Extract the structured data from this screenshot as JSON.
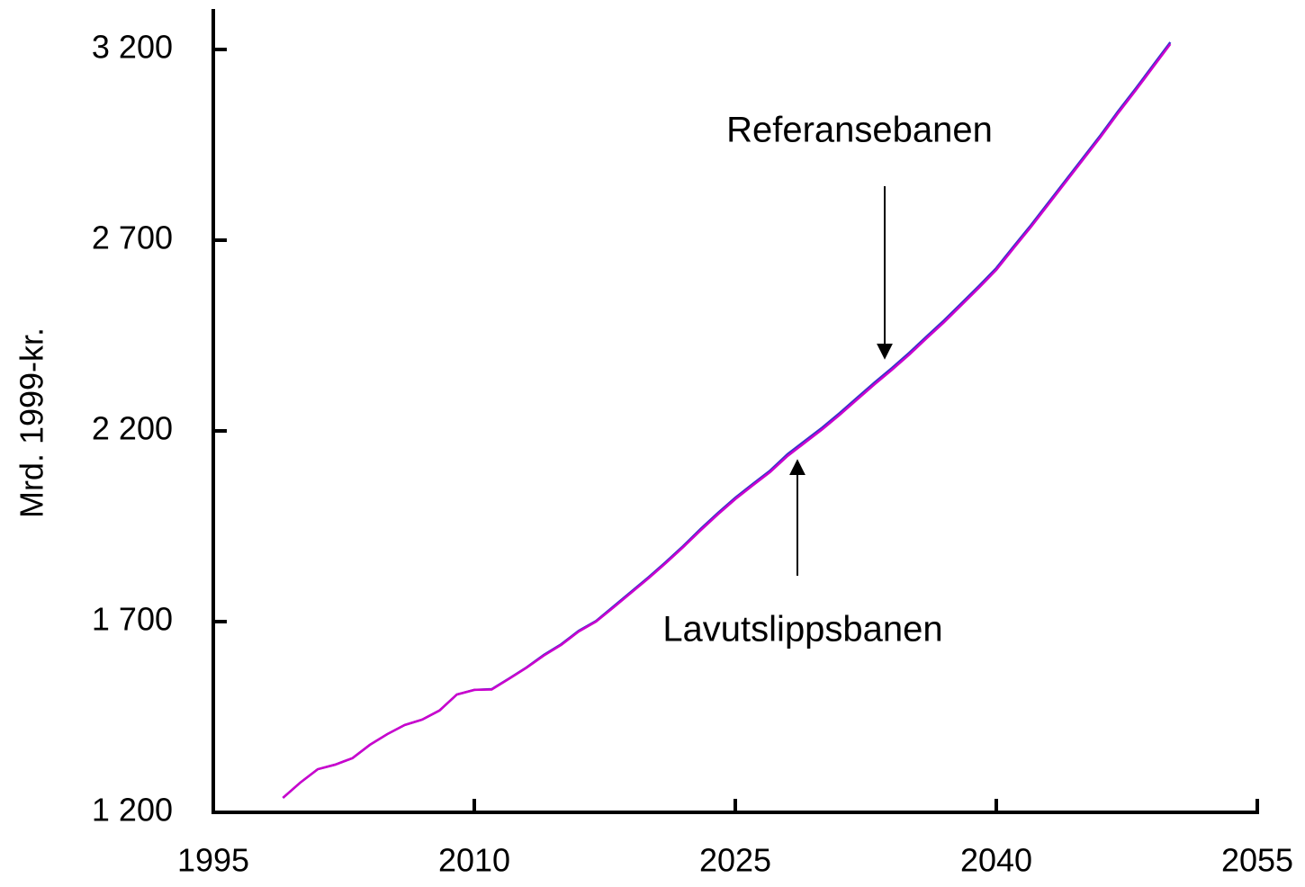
{
  "chart_data": {
    "type": "line",
    "ylabel": "Mrd. 1999-kr.",
    "x": [
      1999,
      2000,
      2001,
      2002,
      2003,
      2004,
      2005,
      2006,
      2007,
      2008,
      2009,
      2010,
      2011,
      2012,
      2013,
      2014,
      2015,
      2016,
      2017,
      2018,
      2019,
      2020,
      2021,
      2022,
      2023,
      2024,
      2025,
      2026,
      2027,
      2028,
      2029,
      2030,
      2031,
      2032,
      2033,
      2034,
      2035,
      2036,
      2037,
      2038,
      2039,
      2040,
      2041,
      2042,
      2043,
      2044,
      2045,
      2046,
      2047,
      2048,
      2049,
      2050
    ],
    "series": [
      {
        "name": "Referansebanen",
        "color": "#3333cc",
        "values": [
          1238,
          1278,
          1313,
          1325,
          1342,
          1377,
          1405,
          1429,
          1443,
          1467,
          1509,
          1521,
          1523,
          1551,
          1580,
          1613,
          1641,
          1676,
          1702,
          1740,
          1778,
          1816,
          1856,
          1898,
          1943,
          1985,
          2025,
          2061,
          2096,
          2139,
          2174,
          2209,
          2247,
          2287,
          2327,
          2365,
          2405,
          2448,
          2490,
          2535,
          2580,
          2627,
          2684,
          2740,
          2799,
          2858,
          2917,
          2976,
          3038,
          3097,
          3158,
          3219
        ]
      },
      {
        "name": "Lavutslippsbanen",
        "color": "#cc00cc",
        "values": [
          1238,
          1278,
          1313,
          1325,
          1342,
          1377,
          1405,
          1429,
          1443,
          1467,
          1509,
          1521,
          1522,
          1550,
          1579,
          1611,
          1639,
          1674,
          1700,
          1737,
          1775,
          1813,
          1853,
          1895,
          1939,
          1981,
          2021,
          2057,
          2092,
          2134,
          2169,
          2204,
          2242,
          2282,
          2322,
          2360,
          2400,
          2443,
          2485,
          2530,
          2575,
          2622,
          2679,
          2735,
          2794,
          2853,
          2912,
          2971,
          3033,
          3092,
          3153,
          3214
        ]
      }
    ],
    "annotations": [
      "Referansebanen",
      "Lavutslippsbanen"
    ],
    "xlim": [
      1995,
      2055
    ],
    "xticks": [
      1995,
      2010,
      2025,
      2040,
      2055
    ],
    "ylim": [
      1200,
      3200
    ],
    "yticks": [
      {
        "value": 1200,
        "label": "1 200"
      },
      {
        "value": 1700,
        "label": "1 700"
      },
      {
        "value": 2200,
        "label": "2 200"
      },
      {
        "value": 2700,
        "label": "2 700"
      },
      {
        "value": 3200,
        "label": "3 200"
      }
    ],
    "grid": false
  }
}
